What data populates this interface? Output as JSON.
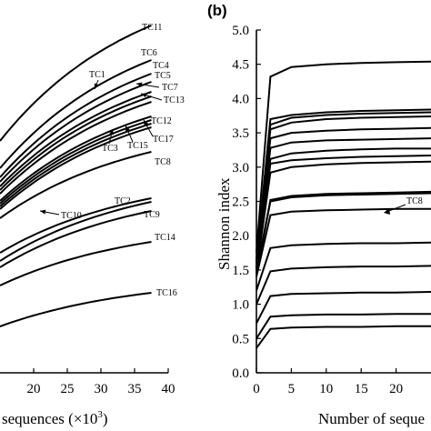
{
  "chart_data": [
    {
      "type": "line",
      "panel_label": "",
      "title": "",
      "xlabel": "sequences (×10",
      "xlabel_sup": "3",
      "xlabel_close": ")",
      "ylabel": "",
      "xlim": [
        15,
        40
      ],
      "ylim": [
        0,
        40
      ],
      "x_ticks": [
        20,
        25,
        30,
        35,
        40
      ],
      "series": [
        {
          "name": "TC11",
          "x": [
            15,
            37.5
          ],
          "y": [
            25.5,
            38.2
          ]
        },
        {
          "name": "TC6",
          "x": [
            15,
            37.5
          ],
          "y": [
            22.5,
            34.4
          ]
        },
        {
          "name": "TC4",
          "x": [
            15,
            37.5
          ],
          "y": [
            21.5,
            32.9
          ]
        },
        {
          "name": "TC5",
          "x": [
            15,
            37.5
          ],
          "y": [
            21.0,
            32.0
          ]
        },
        {
          "name": "TC1",
          "x": [
            15,
            37.5
          ],
          "y": [
            20.5,
            30.9
          ]
        },
        {
          "name": "TC7",
          "x": [
            15,
            37.5
          ],
          "y": [
            20.1,
            30.4
          ]
        },
        {
          "name": "TC13",
          "x": [
            15,
            37.5
          ],
          "y": [
            19.7,
            29.8
          ]
        },
        {
          "name": "TC12",
          "x": [
            15,
            37.5
          ],
          "y": [
            18.9,
            28.2
          ]
        },
        {
          "name": "TC3",
          "x": [
            15,
            37.5
          ],
          "y": [
            18.6,
            27.8
          ]
        },
        {
          "name": "TC15",
          "x": [
            15,
            37.5
          ],
          "y": [
            18.3,
            27.4
          ]
        },
        {
          "name": "TC17",
          "x": [
            15,
            37.5
          ],
          "y": [
            18.0,
            27.0
          ]
        },
        {
          "name": "TC8",
          "x": [
            15,
            37.5
          ],
          "y": [
            17.0,
            24.3
          ]
        },
        {
          "name": "TC10",
          "x": [
            15,
            37.5
          ],
          "y": [
            13.2,
            19.2
          ]
        },
        {
          "name": "TC2",
          "x": [
            15,
            37.5
          ],
          "y": [
            12.3,
            18.8
          ]
        },
        {
          "name": "TC9",
          "x": [
            15,
            37.5
          ],
          "y": [
            11.6,
            17.8
          ]
        },
        {
          "name": "TC14",
          "x": [
            15,
            37.5
          ],
          "y": [
            9.6,
            14.4
          ]
        },
        {
          "name": "TC16",
          "x": [
            15,
            37.5
          ],
          "y": [
            5.1,
            8.8
          ]
        }
      ]
    },
    {
      "type": "line",
      "panel_label": "(b)",
      "title": "",
      "xlabel": "Number of seque",
      "ylabel": "Shannon index",
      "xlim": [
        0,
        25
      ],
      "ylim": [
        0,
        5.0
      ],
      "x_ticks": [
        0,
        5,
        10,
        15,
        20
      ],
      "y_ticks": [
        "0.0",
        "0.5",
        "1.0",
        "1.5",
        "2.0",
        "2.5",
        "3.0",
        "3.5",
        "4.0",
        "4.5",
        "5.0"
      ],
      "annotation": "TC8",
      "series": [
        {
          "x": [
            0,
            2,
            5,
            10,
            15,
            20,
            25
          ],
          "y": [
            1.75,
            4.32,
            4.46,
            4.5,
            4.52,
            4.53,
            4.54
          ]
        },
        {
          "x": [
            0,
            2,
            5,
            10,
            15,
            20,
            25
          ],
          "y": [
            1.65,
            3.7,
            3.76,
            3.8,
            3.82,
            3.83,
            3.84
          ]
        },
        {
          "x": [
            0,
            2,
            5,
            10,
            15,
            20,
            25
          ],
          "y": [
            1.62,
            3.62,
            3.72,
            3.76,
            3.78,
            3.79,
            3.8
          ]
        },
        {
          "x": [
            0,
            2,
            5,
            10,
            15,
            20,
            25
          ],
          "y": [
            1.6,
            3.55,
            3.65,
            3.7,
            3.72,
            3.73,
            3.74
          ]
        },
        {
          "x": [
            0,
            2,
            5,
            10,
            15,
            20,
            25
          ],
          "y": [
            1.56,
            3.42,
            3.5,
            3.53,
            3.55,
            3.56,
            3.57
          ]
        },
        {
          "x": [
            0,
            2,
            5,
            10,
            15,
            20,
            25
          ],
          "y": [
            1.54,
            3.28,
            3.36,
            3.39,
            3.4,
            3.41,
            3.42
          ]
        },
        {
          "x": [
            0,
            2,
            5,
            10,
            15,
            20,
            25
          ],
          "y": [
            1.52,
            3.12,
            3.2,
            3.24,
            3.26,
            3.27,
            3.27
          ]
        },
        {
          "x": [
            0,
            2,
            5,
            10,
            15,
            20,
            25
          ],
          "y": [
            1.5,
            3.05,
            3.1,
            3.13,
            3.15,
            3.16,
            3.17
          ]
        },
        {
          "x": [
            0,
            2,
            5,
            10,
            15,
            20,
            25
          ],
          "y": [
            1.48,
            2.92,
            3.0,
            3.04,
            3.06,
            3.07,
            3.08
          ]
        },
        {
          "x": [
            0,
            2,
            5,
            10,
            15,
            20,
            25
          ],
          "y": [
            1.46,
            2.52,
            2.58,
            2.61,
            2.62,
            2.63,
            2.64
          ]
        },
        {
          "x": [
            0,
            2,
            5,
            10,
            15,
            20,
            25
          ],
          "y": [
            1.44,
            2.5,
            2.56,
            2.59,
            2.6,
            2.61,
            2.62
          ]
        },
        {
          "x": [
            0,
            2,
            5,
            10,
            15,
            20,
            25
          ],
          "y": [
            1.4,
            2.3,
            2.35,
            2.37,
            2.38,
            2.39,
            2.39
          ]
        },
        {
          "x": [
            0,
            2,
            5,
            10,
            15,
            20,
            25
          ],
          "y": [
            1.2,
            1.82,
            1.86,
            1.88,
            1.89,
            1.89,
            1.9
          ]
        },
        {
          "x": [
            0,
            2,
            5,
            10,
            15,
            20,
            25
          ],
          "y": [
            1.0,
            1.48,
            1.52,
            1.54,
            1.55,
            1.55,
            1.56
          ]
        },
        {
          "x": [
            0,
            2,
            5,
            10,
            15,
            20,
            25
          ],
          "y": [
            0.72,
            1.12,
            1.15,
            1.16,
            1.17,
            1.17,
            1.18
          ]
        },
        {
          "x": [
            0,
            2,
            5,
            10,
            15,
            20,
            25
          ],
          "y": [
            0.5,
            0.82,
            0.84,
            0.85,
            0.85,
            0.86,
            0.86
          ]
        },
        {
          "x": [
            0,
            2,
            5,
            10,
            15,
            20,
            25
          ],
          "y": [
            0.36,
            0.64,
            0.66,
            0.67,
            0.67,
            0.68,
            0.68
          ]
        }
      ]
    }
  ]
}
